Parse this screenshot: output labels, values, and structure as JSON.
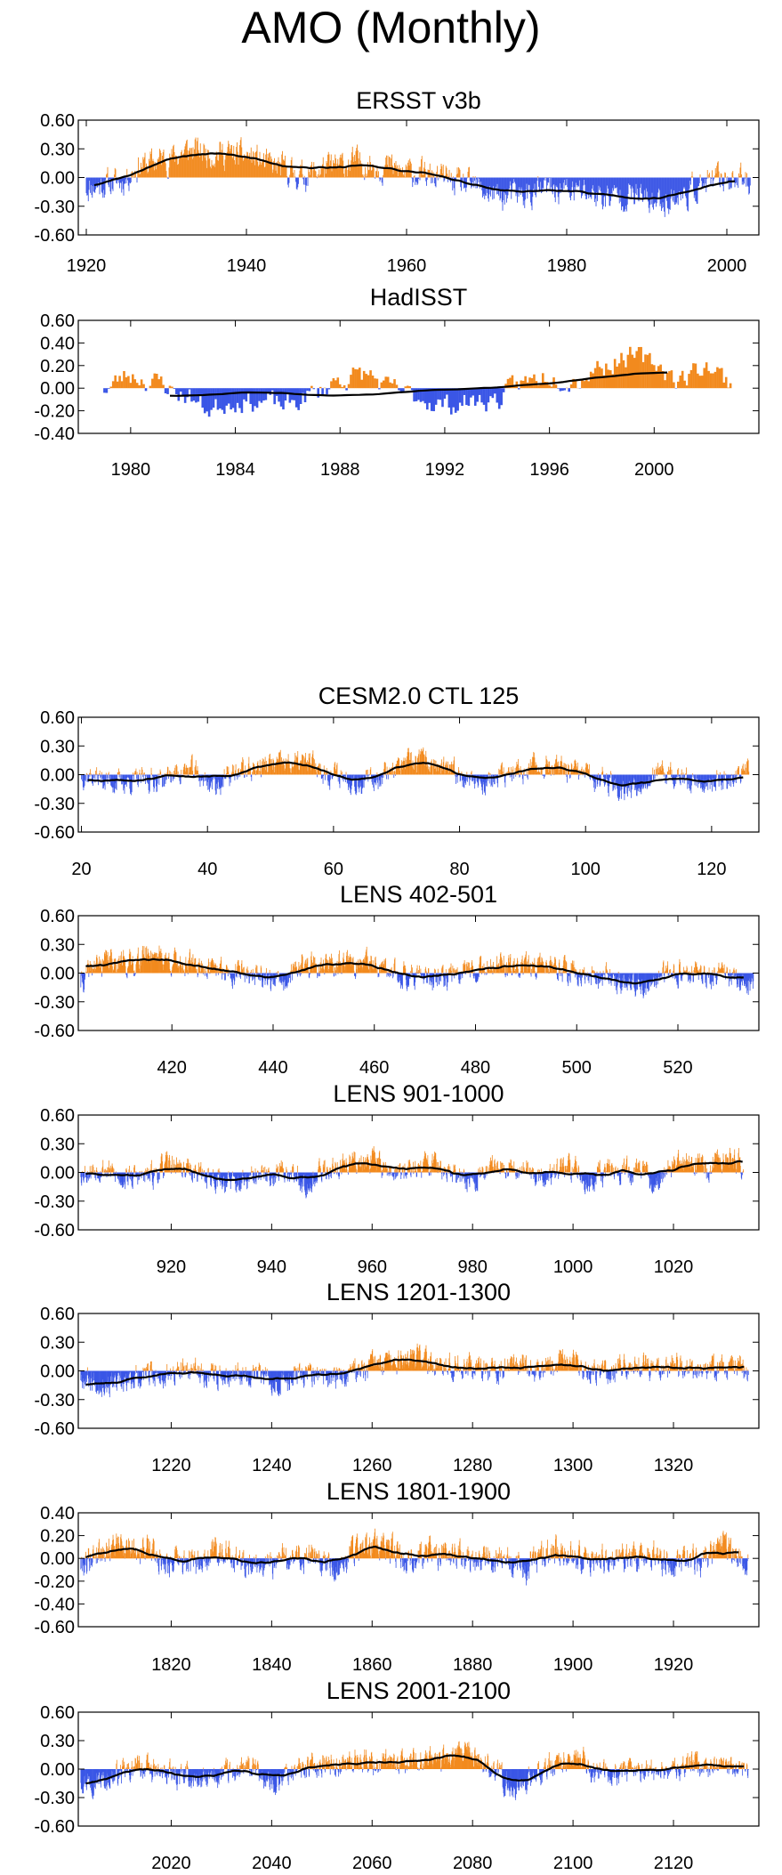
{
  "page": {
    "title": "AMO (Monthly)"
  },
  "colors": {
    "positive": "#f28a1e",
    "negative": "#3a56e6",
    "smooth": "#000000",
    "frame": "#000000"
  },
  "chart_data": [
    {
      "type": "bar",
      "title": "ERSST v3b",
      "x_ticks": [
        1920,
        1940,
        1960,
        1980,
        2000
      ],
      "xlim": [
        1919,
        2004
      ],
      "y_ticks": [
        "0.60",
        "0.30",
        "0.00",
        "-0.30",
        "-0.60"
      ],
      "ylim": [
        -0.6,
        0.6
      ],
      "data_range": [
        1920,
        2003
      ],
      "anchors": [
        [
          1920,
          -0.1
        ],
        [
          1924,
          -0.05
        ],
        [
          1927,
          0.13
        ],
        [
          1930,
          0.2
        ],
        [
          1933,
          0.28
        ],
        [
          1936,
          0.26
        ],
        [
          1940,
          0.22
        ],
        [
          1944,
          0.1
        ],
        [
          1947,
          0.02
        ],
        [
          1950,
          0.1
        ],
        [
          1954,
          0.16
        ],
        [
          1957,
          0.12
        ],
        [
          1960,
          0.05
        ],
        [
          1964,
          0.0
        ],
        [
          1968,
          -0.1
        ],
        [
          1972,
          -0.2
        ],
        [
          1975,
          -0.18
        ],
        [
          1978,
          -0.12
        ],
        [
          1982,
          -0.15
        ],
        [
          1985,
          -0.2
        ],
        [
          1988,
          -0.18
        ],
        [
          1991,
          -0.26
        ],
        [
          1994,
          -0.2
        ],
        [
          1997,
          -0.08
        ],
        [
          2000,
          0.0
        ],
        [
          2003,
          -0.05
        ]
      ],
      "noise": 0.12,
      "smooth_range": [
        1921,
        2001
      ],
      "seed": 11
    },
    {
      "type": "bar",
      "title": "HadISST",
      "x_ticks": [
        1980,
        1984,
        1988,
        1992,
        1996,
        2000
      ],
      "xlim": [
        1978,
        2004
      ],
      "y_ticks": [
        "0.60",
        "0.40",
        "0.20",
        "0.00",
        "-0.20",
        "-0.40"
      ],
      "ylim": [
        -0.4,
        0.6
      ],
      "data_range": [
        1979,
        2003
      ],
      "anchors": [
        [
          1979,
          0.0
        ],
        [
          1980,
          0.12
        ],
        [
          1981,
          0.05
        ],
        [
          1982,
          -0.05
        ],
        [
          1983,
          -0.18
        ],
        [
          1984,
          -0.1
        ],
        [
          1985,
          -0.12
        ],
        [
          1986,
          -0.15
        ],
        [
          1987,
          -0.05
        ],
        [
          1988,
          0.08
        ],
        [
          1989,
          0.12
        ],
        [
          1990,
          -0.02
        ],
        [
          1991,
          -0.08
        ],
        [
          1992,
          -0.15
        ],
        [
          1993,
          -0.12
        ],
        [
          1994,
          -0.1
        ],
        [
          1995,
          0.05
        ],
        [
          1996,
          0.12
        ],
        [
          1997,
          0.08
        ],
        [
          1998,
          0.2
        ],
        [
          1999,
          0.28
        ],
        [
          2000,
          0.22
        ],
        [
          2001,
          0.08
        ],
        [
          2002,
          0.2
        ],
        [
          2003,
          0.05
        ]
      ],
      "noise": 0.08,
      "smooth_range": [
        1981.5,
        2000.5
      ],
      "seed": 23
    },
    {
      "type": "bar",
      "title": "CESM2.0 CTL 125",
      "x_ticks": [
        20,
        40,
        60,
        80,
        100,
        120
      ],
      "xlim": [
        19.5,
        127.5
      ],
      "y_ticks": [
        "0.60",
        "0.30",
        "0.00",
        "-0.30",
        "-0.60"
      ],
      "ylim": [
        -0.6,
        0.6
      ],
      "data_range": [
        20,
        126
      ],
      "anchors": [
        [
          20,
          0.0
        ],
        [
          26,
          -0.08
        ],
        [
          32,
          -0.05
        ],
        [
          37,
          0.05
        ],
        [
          41,
          -0.1
        ],
        [
          46,
          0.05
        ],
        [
          50,
          0.1
        ],
        [
          56,
          0.12
        ],
        [
          60,
          0.0
        ],
        [
          65,
          -0.08
        ],
        [
          70,
          0.08
        ],
        [
          74,
          0.14
        ],
        [
          79,
          0.02
        ],
        [
          84,
          -0.08
        ],
        [
          88,
          0.0
        ],
        [
          93,
          0.1
        ],
        [
          98,
          0.02
        ],
        [
          103,
          -0.05
        ],
        [
          106,
          -0.15
        ],
        [
          112,
          0.0
        ],
        [
          118,
          -0.08
        ],
        [
          123,
          -0.05
        ],
        [
          126,
          0.05
        ]
      ],
      "noise": 0.1,
      "smooth_range": [
        21,
        125
      ],
      "seed": 37
    },
    {
      "type": "bar",
      "title": "LENS 402-501",
      "x_ticks": [
        420,
        440,
        460,
        480,
        500,
        520
      ],
      "xlim": [
        401.5,
        536
      ],
      "y_ticks": [
        "0.60",
        "0.30",
        "0.00",
        "-0.30",
        "-0.60"
      ],
      "ylim": [
        -0.6,
        0.6
      ],
      "data_range": [
        402,
        535
      ],
      "anchors": [
        [
          402,
          -0.1
        ],
        [
          405,
          0.08
        ],
        [
          408,
          0.14
        ],
        [
          412,
          0.1
        ],
        [
          416,
          0.22
        ],
        [
          420,
          0.12
        ],
        [
          425,
          0.08
        ],
        [
          430,
          0.02
        ],
        [
          436,
          0.0
        ],
        [
          442,
          -0.1
        ],
        [
          446,
          0.08
        ],
        [
          452,
          0.08
        ],
        [
          458,
          0.1
        ],
        [
          463,
          0.0
        ],
        [
          468,
          -0.02
        ],
        [
          473,
          -0.08
        ],
        [
          478,
          0.05
        ],
        [
          483,
          0.08
        ],
        [
          488,
          0.05
        ],
        [
          494,
          0.08
        ],
        [
          499,
          0.0
        ],
        [
          504,
          -0.02
        ],
        [
          509,
          -0.1
        ],
        [
          514,
          -0.12
        ],
        [
          518,
          -0.02
        ],
        [
          523,
          0.0
        ],
        [
          529,
          -0.05
        ],
        [
          535,
          -0.1
        ]
      ],
      "noise": 0.1,
      "smooth_range": [
        403,
        533
      ],
      "seed": 41
    },
    {
      "type": "bar",
      "title": "LENS 901-1000",
      "x_ticks": [
        920,
        940,
        960,
        980,
        1000,
        1020
      ],
      "xlim": [
        901.5,
        1037
      ],
      "y_ticks": [
        "0.60",
        "0.30",
        "0.00",
        "-0.30",
        "-0.60"
      ],
      "ylim": [
        -0.6,
        0.6
      ],
      "data_range": [
        902,
        1034
      ],
      "anchors": [
        [
          902,
          0.0
        ],
        [
          906,
          0.05
        ],
        [
          910,
          -0.05
        ],
        [
          915,
          -0.05
        ],
        [
          920,
          0.08
        ],
        [
          924,
          0.02
        ],
        [
          928,
          -0.05
        ],
        [
          933,
          -0.12
        ],
        [
          938,
          -0.05
        ],
        [
          943,
          0.02
        ],
        [
          947,
          -0.1
        ],
        [
          952,
          0.05
        ],
        [
          956,
          0.1
        ],
        [
          960,
          0.15
        ],
        [
          964,
          0.0
        ],
        [
          968,
          0.02
        ],
        [
          972,
          0.1
        ],
        [
          976,
          -0.05
        ],
        [
          980,
          -0.08
        ],
        [
          985,
          0.1
        ],
        [
          989,
          0.05
        ],
        [
          994,
          -0.05
        ],
        [
          999,
          0.05
        ],
        [
          1003,
          -0.08
        ],
        [
          1008,
          0.02
        ],
        [
          1013,
          0.0
        ],
        [
          1017,
          -0.1
        ],
        [
          1021,
          0.12
        ],
        [
          1026,
          0.05
        ],
        [
          1030,
          0.12
        ],
        [
          1034,
          0.1
        ]
      ],
      "noise": 0.1,
      "smooth_range": [
        903,
        1034
      ],
      "seed": 53
    },
    {
      "type": "bar",
      "title": "LENS 1201-1300",
      "x_ticks": [
        1220,
        1240,
        1260,
        1280,
        1300,
        1320
      ],
      "xlim": [
        1201.5,
        1337
      ],
      "y_ticks": [
        "0.60",
        "0.30",
        "0.00",
        "-0.30",
        "-0.60"
      ],
      "ylim": [
        -0.6,
        0.6
      ],
      "data_range": [
        1202,
        1335
      ],
      "anchors": [
        [
          1202,
          -0.05
        ],
        [
          1206,
          -0.12
        ],
        [
          1210,
          -0.15
        ],
        [
          1214,
          -0.05
        ],
        [
          1219,
          -0.05
        ],
        [
          1224,
          0.0
        ],
        [
          1229,
          -0.05
        ],
        [
          1234,
          0.0
        ],
        [
          1238,
          -0.05
        ],
        [
          1242,
          -0.12
        ],
        [
          1246,
          -0.02
        ],
        [
          1251,
          -0.08
        ],
        [
          1256,
          0.0
        ],
        [
          1261,
          0.05
        ],
        [
          1265,
          0.08
        ],
        [
          1270,
          0.12
        ],
        [
          1275,
          0.08
        ],
        [
          1280,
          0.05
        ],
        [
          1284,
          0.0
        ],
        [
          1289,
          0.1
        ],
        [
          1293,
          0.02
        ],
        [
          1298,
          0.12
        ],
        [
          1302,
          0.05
        ],
        [
          1306,
          0.0
        ],
        [
          1311,
          0.08
        ],
        [
          1316,
          0.02
        ],
        [
          1321,
          0.05
        ],
        [
          1326,
          0.0
        ],
        [
          1331,
          0.05
        ],
        [
          1335,
          0.0
        ]
      ],
      "noise": 0.1,
      "smooth_range": [
        1203,
        1334
      ],
      "seed": 67
    },
    {
      "type": "bar",
      "title": "LENS 1801-1900",
      "x_ticks": [
        1820,
        1840,
        1860,
        1880,
        1900,
        1920
      ],
      "xlim": [
        1801.5,
        1937
      ],
      "y_ticks": [
        "0.40",
        "0.20",
        "0.00",
        "-0.20",
        "-0.40",
        "-0.60"
      ],
      "ylim": [
        -0.6,
        0.4
      ],
      "data_range": [
        1802,
        1935
      ],
      "anchors": [
        [
          1802,
          -0.05
        ],
        [
          1806,
          0.08
        ],
        [
          1810,
          0.12
        ],
        [
          1815,
          0.08
        ],
        [
          1819,
          -0.02
        ],
        [
          1824,
          -0.05
        ],
        [
          1829,
          0.08
        ],
        [
          1834,
          -0.02
        ],
        [
          1839,
          -0.08
        ],
        [
          1843,
          0.02
        ],
        [
          1848,
          0.0
        ],
        [
          1853,
          -0.1
        ],
        [
          1858,
          0.12
        ],
        [
          1862,
          0.08
        ],
        [
          1867,
          0.0
        ],
        [
          1871,
          0.05
        ],
        [
          1876,
          0.02
        ],
        [
          1881,
          -0.02
        ],
        [
          1885,
          0.0
        ],
        [
          1890,
          -0.1
        ],
        [
          1895,
          0.05
        ],
        [
          1900,
          0.02
        ],
        [
          1905,
          -0.02
        ],
        [
          1910,
          0.0
        ],
        [
          1915,
          0.02
        ],
        [
          1920,
          -0.05
        ],
        [
          1925,
          -0.02
        ],
        [
          1930,
          0.12
        ],
        [
          1935,
          -0.05
        ]
      ],
      "noise": 0.1,
      "smooth_range": [
        1803,
        1933
      ],
      "seed": 79
    },
    {
      "type": "bar",
      "title": "LENS 2001-2100",
      "x_ticks": [
        2020,
        2040,
        2060,
        2080,
        2100,
        2120
      ],
      "xlim": [
        2001.5,
        2137
      ],
      "y_ticks": [
        "0.60",
        "0.30",
        "0.00",
        "-0.30",
        "-0.60"
      ],
      "ylim": [
        -0.6,
        0.6
      ],
      "data_range": [
        2002,
        2135
      ],
      "anchors": [
        [
          2002,
          -0.1
        ],
        [
          2006,
          -0.12
        ],
        [
          2010,
          -0.05
        ],
        [
          2014,
          0.02
        ],
        [
          2018,
          -0.05
        ],
        [
          2022,
          -0.08
        ],
        [
          2027,
          -0.12
        ],
        [
          2031,
          -0.05
        ],
        [
          2036,
          0.0
        ],
        [
          2040,
          -0.15
        ],
        [
          2044,
          -0.02
        ],
        [
          2049,
          0.05
        ],
        [
          2054,
          0.05
        ],
        [
          2058,
          0.1
        ],
        [
          2062,
          0.05
        ],
        [
          2066,
          0.05
        ],
        [
          2070,
          0.12
        ],
        [
          2074,
          0.1
        ],
        [
          2079,
          0.15
        ],
        [
          2083,
          0.05
        ],
        [
          2088,
          -0.2
        ],
        [
          2092,
          -0.1
        ],
        [
          2096,
          0.05
        ],
        [
          2101,
          0.1
        ],
        [
          2105,
          -0.05
        ],
        [
          2110,
          -0.05
        ],
        [
          2115,
          -0.02
        ],
        [
          2120,
          0.0
        ],
        [
          2124,
          0.05
        ],
        [
          2129,
          0.02
        ],
        [
          2135,
          -0.05
        ]
      ],
      "noise": 0.1,
      "smooth_range": [
        2003,
        2134
      ],
      "seed": 97
    }
  ]
}
